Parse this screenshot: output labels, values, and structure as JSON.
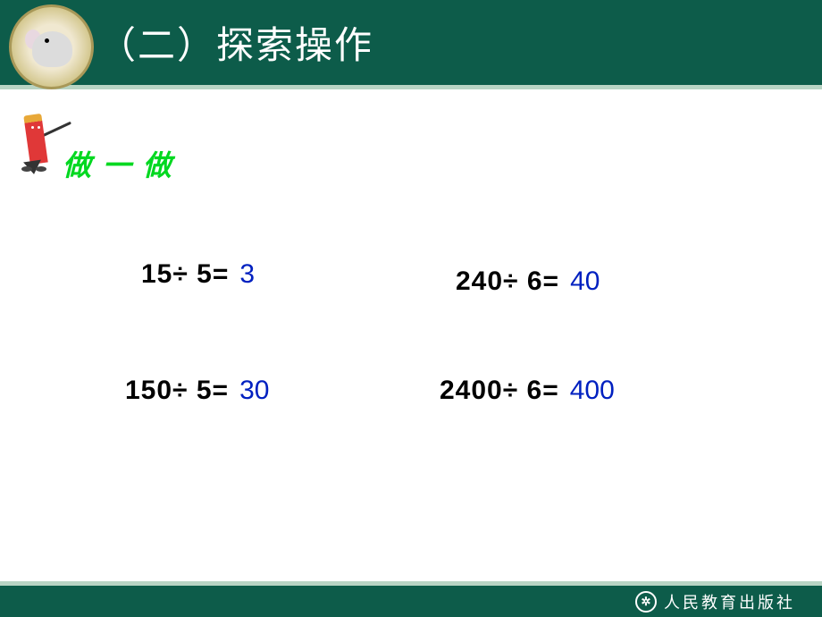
{
  "header": {
    "title": "（二）探索操作",
    "background_color": "#0d5c4a",
    "border_color": "#b8d4c4",
    "title_color": "#ffffff",
    "title_fontsize": 42
  },
  "subtitle": {
    "text": "做 一 做",
    "color": "#00d820",
    "fontsize": 32
  },
  "equations": [
    {
      "expr": "15÷ 5=",
      "answer": "3"
    },
    {
      "expr": "240÷ 6=",
      "answer": "40"
    },
    {
      "expr": "150÷ 5=",
      "answer": "30"
    },
    {
      "expr": "2400÷ 6=",
      "answer": "400"
    }
  ],
  "equation_style": {
    "expr_color": "#000000",
    "answer_color": "#0020c0",
    "fontsize": 30
  },
  "footer": {
    "publisher": "人民教育出版社",
    "icon_glyph": "✲",
    "background_color": "#0d5c4a",
    "text_color": "#ffffff"
  }
}
